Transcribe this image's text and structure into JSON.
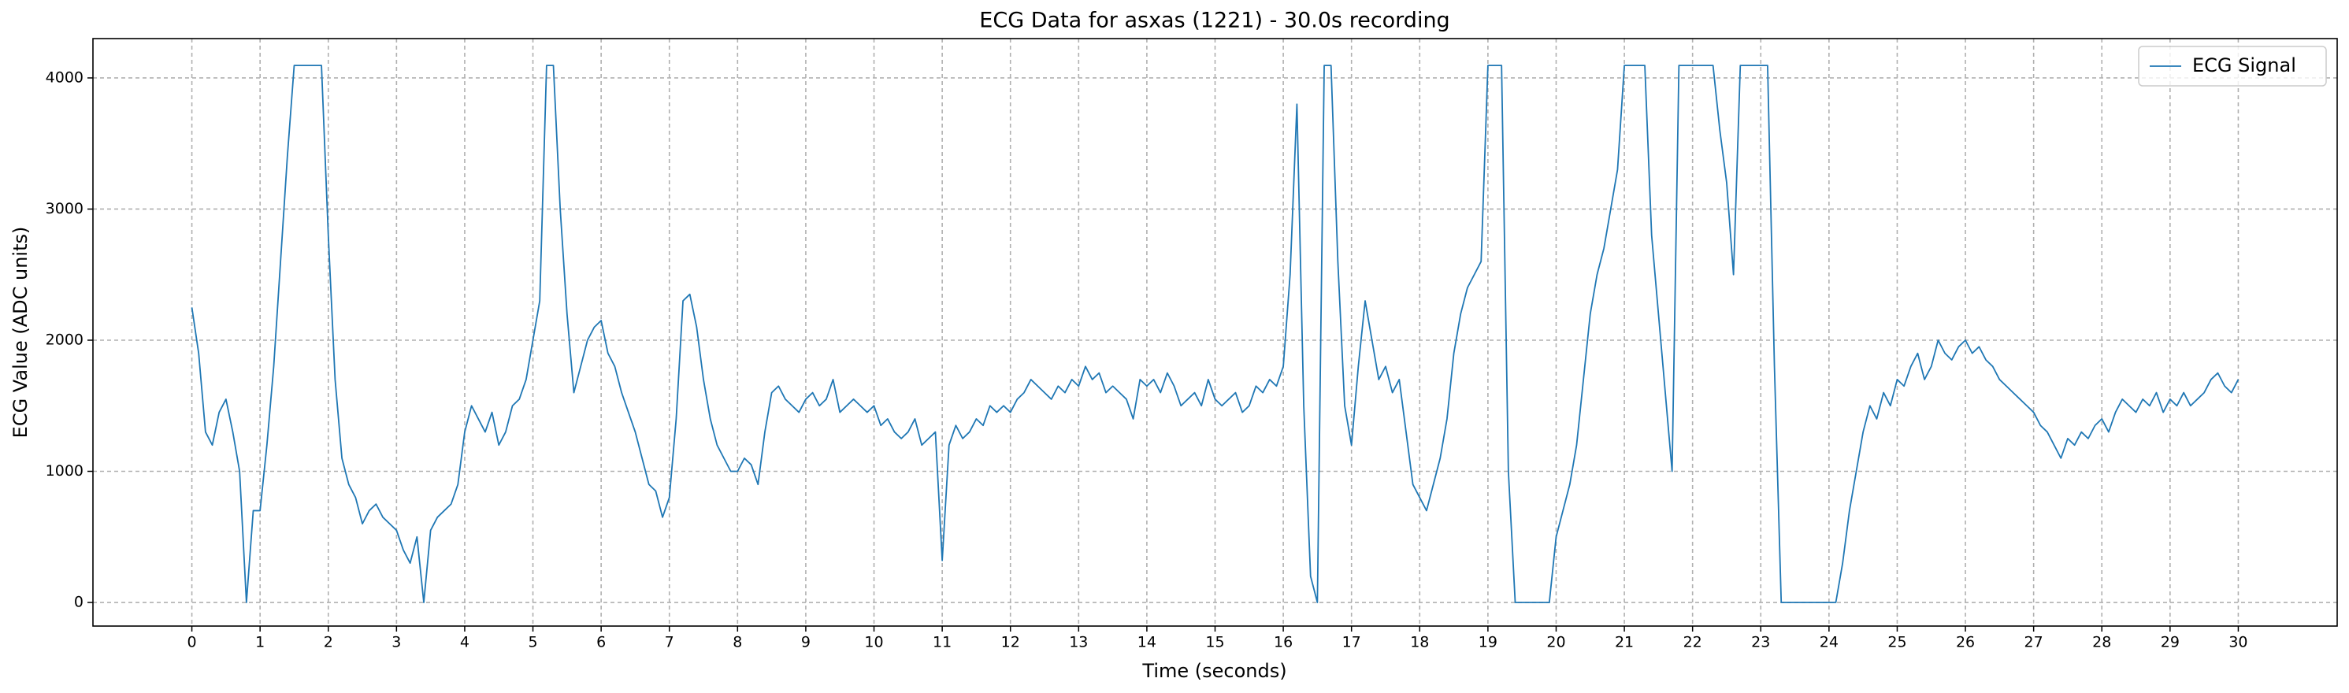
{
  "chart_data": {
    "type": "line",
    "title": "ECG Data for asxas (1221) - 30.0s recording",
    "xlabel": "Time (seconds)",
    "ylabel": "ECG Value (ADC units)",
    "x": [
      0,
      0.1,
      0.2,
      0.3,
      0.4,
      0.5,
      0.6,
      0.7,
      0.8,
      0.9,
      1,
      1.1,
      1.2,
      1.3,
      1.4,
      1.5,
      1.6,
      1.7,
      1.8,
      1.9,
      2,
      2.1,
      2.2,
      2.3,
      2.4,
      2.5,
      2.6,
      2.7,
      2.8,
      2.9,
      3,
      3.1,
      3.2,
      3.3,
      3.4,
      3.5,
      3.6,
      3.7,
      3.8,
      3.9,
      4,
      4.1,
      4.2,
      4.3,
      4.4,
      4.5,
      4.6,
      4.7,
      4.8,
      4.9,
      5,
      5.1,
      5.2,
      5.3,
      5.4,
      5.5,
      5.6,
      5.7,
      5.8,
      5.9,
      6,
      6.1,
      6.2,
      6.3,
      6.4,
      6.5,
      6.6,
      6.7,
      6.8,
      6.9,
      7,
      7.1,
      7.2,
      7.3,
      7.4,
      7.5,
      7.6,
      7.7,
      7.8,
      7.9,
      8,
      8.1,
      8.2,
      8.3,
      8.4,
      8.5,
      8.6,
      8.7,
      8.8,
      8.9,
      9,
      9.1,
      9.2,
      9.3,
      9.4,
      9.5,
      9.6,
      9.7,
      9.8,
      9.9,
      10,
      10.1,
      10.2,
      10.3,
      10.4,
      10.5,
      10.6,
      10.7,
      10.8,
      10.9,
      11,
      11.1,
      11.2,
      11.3,
      11.4,
      11.5,
      11.6,
      11.7,
      11.8,
      11.9,
      12,
      12.1,
      12.2,
      12.3,
      12.4,
      12.5,
      12.6,
      12.7,
      12.8,
      12.9,
      13,
      13.1,
      13.2,
      13.3,
      13.4,
      13.5,
      13.6,
      13.7,
      13.8,
      13.9,
      14,
      14.1,
      14.2,
      14.3,
      14.4,
      14.5,
      14.6,
      14.7,
      14.8,
      14.9,
      15,
      15.1,
      15.2,
      15.3,
      15.4,
      15.5,
      15.6,
      15.7,
      15.8,
      15.9,
      16,
      16.1,
      16.2,
      16.3,
      16.4,
      16.5,
      16.6,
      16.7,
      16.8,
      16.9,
      17,
      17.1,
      17.2,
      17.3,
      17.4,
      17.5,
      17.6,
      17.7,
      17.8,
      17.9,
      18,
      18.1,
      18.2,
      18.3,
      18.4,
      18.5,
      18.6,
      18.7,
      18.8,
      18.9,
      19,
      19.1,
      19.2,
      19.3,
      19.4,
      19.5,
      19.6,
      19.7,
      19.8,
      19.9,
      20,
      20.1,
      20.2,
      20.3,
      20.4,
      20.5,
      20.6,
      20.7,
      20.8,
      20.9,
      21,
      21.1,
      21.2,
      21.3,
      21.4,
      21.5,
      21.6,
      21.7,
      21.8,
      21.9,
      22,
      22.1,
      22.2,
      22.3,
      22.4,
      22.5,
      22.6,
      22.7,
      22.8,
      22.9,
      23,
      23.1,
      23.2,
      23.3,
      23.4,
      23.5,
      23.6,
      23.7,
      23.8,
      23.9,
      24,
      24.1,
      24.2,
      24.3,
      24.4,
      24.5,
      24.6,
      24.7,
      24.8,
      24.9,
      25,
      25.1,
      25.2,
      25.3,
      25.4,
      25.5,
      25.6,
      25.7,
      25.8,
      25.9,
      26,
      26.1,
      26.2,
      26.3,
      26.4,
      26.5,
      26.6,
      26.7,
      26.8,
      26.9,
      27,
      27.1,
      27.2,
      27.3,
      27.4,
      27.5,
      27.6,
      27.7,
      27.8,
      27.9,
      28,
      28.1,
      28.2,
      28.3,
      28.4,
      28.5,
      28.6,
      28.7,
      28.8,
      28.9,
      29,
      29.1,
      29.2,
      29.3,
      29.4,
      29.5,
      29.6,
      29.7,
      29.8,
      29.9,
      30
    ],
    "series": [
      {
        "name": "ECG Signal",
        "color": "#1f77b4",
        "values": [
          2250,
          1900,
          1300,
          1200,
          1450,
          1550,
          1300,
          1000,
          0,
          700,
          700,
          1200,
          1800,
          2600,
          3400,
          4095,
          4095,
          4095,
          4095,
          4095,
          2800,
          1700,
          1100,
          900,
          800,
          600,
          700,
          750,
          650,
          600,
          550,
          400,
          300,
          500,
          0,
          550,
          650,
          700,
          750,
          900,
          1300,
          1500,
          1400,
          1300,
          1450,
          1200,
          1300,
          1500,
          1550,
          1700,
          2000,
          2300,
          4095,
          4095,
          3000,
          2200,
          1600,
          1800,
          2000,
          2100,
          2150,
          1900,
          1800,
          1600,
          1450,
          1300,
          1100,
          900,
          850,
          650,
          800,
          1400,
          2300,
          2350,
          2100,
          1700,
          1400,
          1200,
          1100,
          1000,
          1000,
          1100,
          1050,
          900,
          1300,
          1600,
          1650,
          1550,
          1500,
          1450,
          1550,
          1600,
          1500,
          1550,
          1700,
          1450,
          1500,
          1550,
          1500,
          1450,
          1500,
          1350,
          1400,
          1300,
          1250,
          1300,
          1400,
          1200,
          1250,
          1300,
          320,
          1200,
          1350,
          1250,
          1300,
          1400,
          1350,
          1500,
          1450,
          1500,
          1450,
          1550,
          1600,
          1700,
          1650,
          1600,
          1550,
          1650,
          1600,
          1700,
          1650,
          1800,
          1700,
          1750,
          1600,
          1650,
          1600,
          1550,
          1400,
          1700,
          1650,
          1700,
          1600,
          1750,
          1650,
          1500,
          1550,
          1600,
          1500,
          1700,
          1550,
          1500,
          1550,
          1600,
          1450,
          1500,
          1650,
          1600,
          1700,
          1650,
          1800,
          2500,
          3800,
          1500,
          200,
          0,
          4095,
          4095,
          2600,
          1500,
          1200,
          1800,
          2300,
          2000,
          1700,
          1800,
          1600,
          1700,
          1300,
          900,
          800,
          700,
          900,
          1100,
          1400,
          1900,
          2200,
          2400,
          2500,
          2600,
          4095,
          4095,
          4095,
          1000,
          0,
          0,
          0,
          0,
          0,
          0,
          500,
          700,
          900,
          1200,
          1700,
          2200,
          2500,
          2700,
          3000,
          3300,
          4095,
          4095,
          4095,
          4095,
          2800,
          2200,
          1600,
          1000,
          4095,
          4095,
          4095,
          4095,
          4095,
          4095,
          3600,
          3200,
          2500,
          4095,
          4095,
          4095,
          4095,
          4095,
          1800,
          0,
          0,
          0,
          0,
          0,
          0,
          0,
          0,
          0,
          300,
          700,
          1000,
          1300,
          1500,
          1400,
          1600,
          1500,
          1700,
          1650,
          1800,
          1900,
          1700,
          1800,
          2000,
          1900,
          1850,
          1950,
          2000,
          1900,
          1950,
          1850,
          1800,
          1700,
          1650,
          1600,
          1550,
          1500,
          1450,
          1350,
          1300,
          1200,
          1100,
          1250,
          1200,
          1300,
          1250,
          1350,
          1400,
          1300,
          1450,
          1550,
          1500,
          1450,
          1550,
          1500,
          1600,
          1450,
          1550,
          1500,
          1600,
          1500,
          1550,
          1600,
          1700,
          1750,
          1650,
          1600,
          1700
        ]
      }
    ],
    "xlim": [
      -1.45,
      31.45
    ],
    "ylim": [
      -180,
      4300
    ],
    "xticks": [
      0,
      1,
      2,
      3,
      4,
      5,
      6,
      7,
      8,
      9,
      10,
      11,
      12,
      13,
      14,
      15,
      16,
      17,
      18,
      19,
      20,
      21,
      22,
      23,
      24,
      25,
      26,
      27,
      28,
      29,
      30
    ],
    "yticks": [
      0,
      1000,
      2000,
      3000,
      4000
    ],
    "grid": true,
    "legend": "upper right"
  }
}
